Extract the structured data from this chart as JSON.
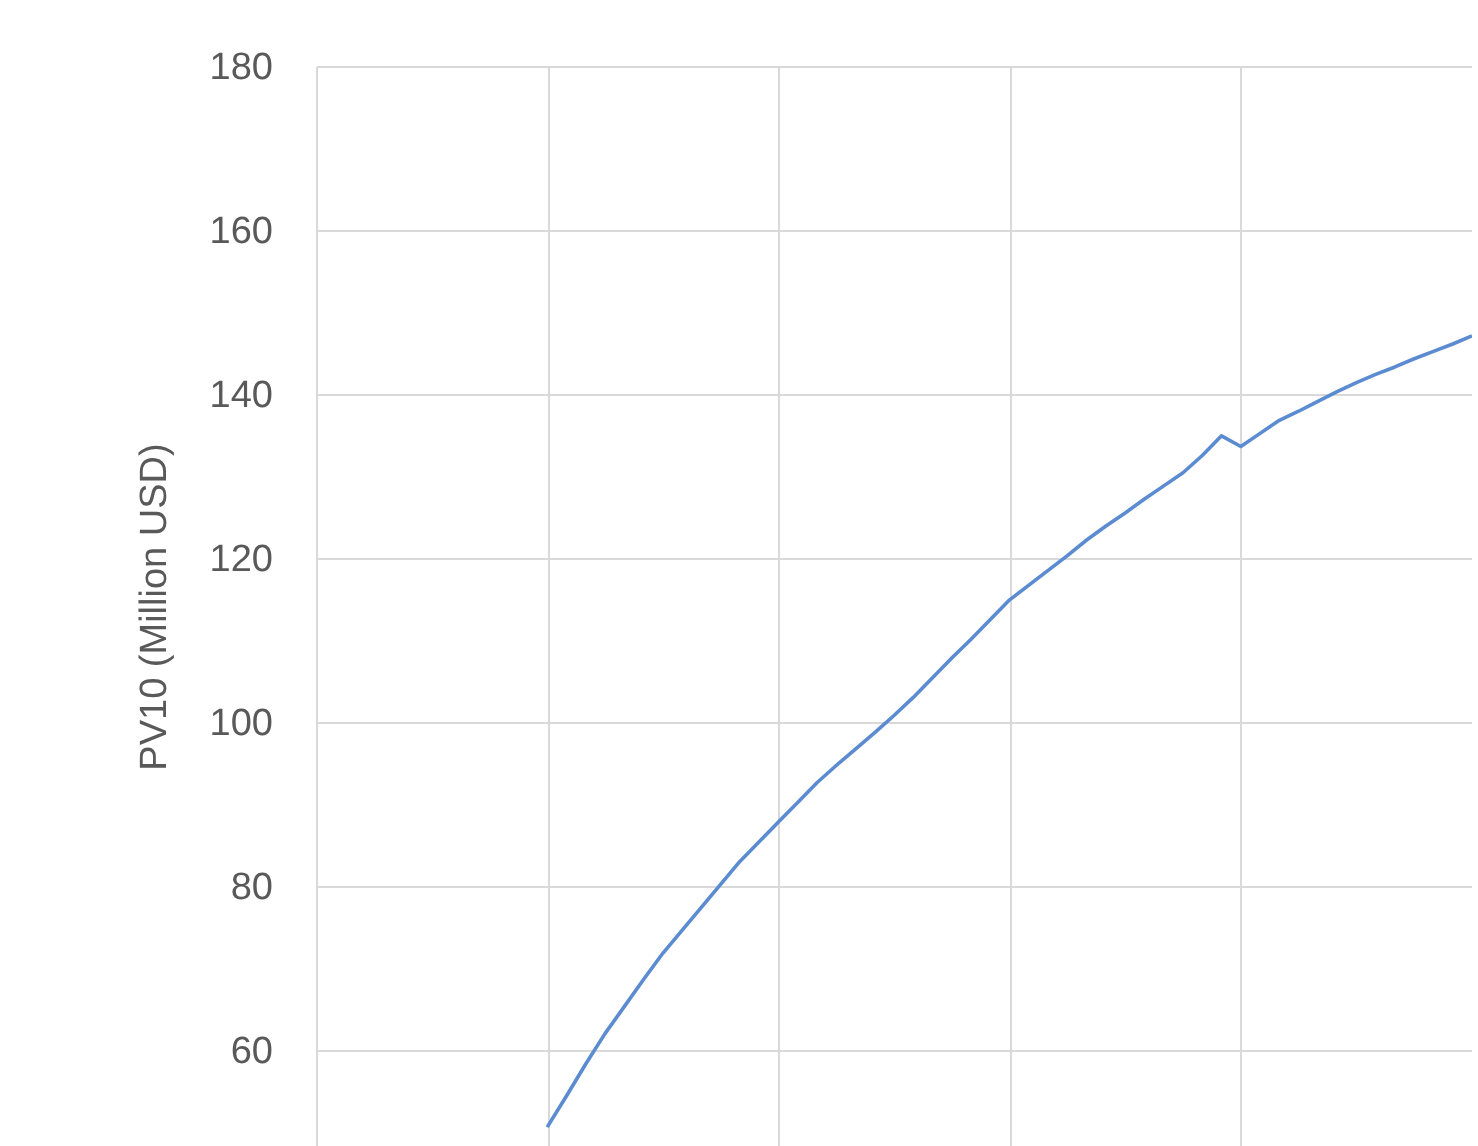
{
  "chart_data": {
    "type": "line",
    "ylabel": "PV10 (Million USD)",
    "categories": [
      null,
      null,
      null,
      null,
      null,
      null,
      null,
      null,
      null,
      null,
      null,
      null,
      null,
      null,
      null,
      null,
      null,
      null,
      null,
      null,
      null,
      null,
      null,
      null,
      null,
      null,
      null,
      null,
      null,
      null,
      null,
      null,
      null,
      null,
      null,
      null,
      null,
      null,
      null,
      null,
      null,
      null,
      null,
      null,
      null,
      null,
      null,
      null,
      null,
      null,
      null,
      null,
      null,
      null,
      null,
      null,
      null,
      null,
      null,
      null,
      null
    ],
    "series": [
      {
        "color": "#5b8bd0",
        "values": [
          null,
          null,
          null,
          null,
          null,
          null,
          null,
          null,
          null,
          null,
          null,
          null,
          50.6,
          54.4,
          58.3,
          62.0,
          65.3,
          68.6,
          71.8,
          74.6,
          77.4,
          80.2,
          83.0,
          85.4,
          87.8,
          90.2,
          92.6,
          94.7,
          96.7,
          98.7,
          100.8,
          103.0,
          105.4,
          107.8,
          110.1,
          112.5,
          114.9,
          116.7,
          118.5,
          120.3,
          122.2,
          123.9,
          125.5,
          127.2,
          128.8,
          130.4,
          132.5,
          134.9,
          133.6,
          135.2,
          136.8,
          137.9,
          139.1,
          140.3,
          141.4,
          142.4,
          143.3,
          144.3,
          145.2,
          146.1,
          147.1
        ]
      }
    ],
    "ylim": [
      48.3,
      180
    ],
    "yticks": [
      60,
      80,
      100,
      120,
      140,
      160,
      180
    ],
    "tick_labels": "y",
    "grid": true,
    "marker": "none",
    "line_style": "solid"
  }
}
